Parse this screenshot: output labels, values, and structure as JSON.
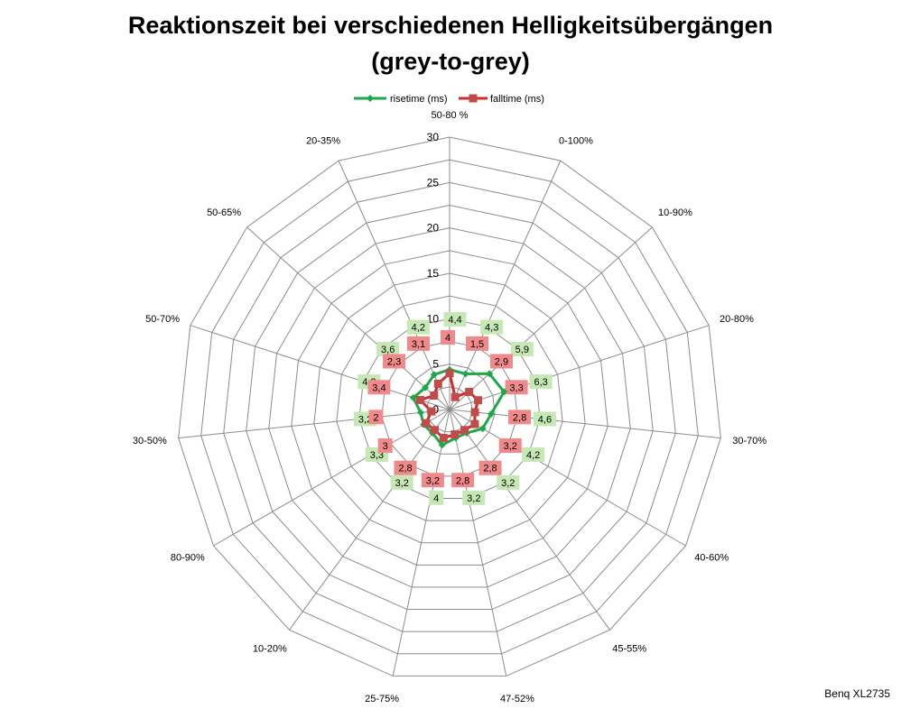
{
  "title_line1": "Reaktionszeit bei verschiedenen Helligkeitsübergängen",
  "title_line2": "(grey-to-grey)",
  "source_label": "Benq XL2735",
  "colors": {
    "rise_line": "#1fa84a",
    "fall_line": "#d42a2a",
    "fall_marker": "#bf4b4b",
    "rise_label_bg": "#c5e8b4",
    "fall_label_bg": "#f08a8a",
    "grid": "#8c8c8c"
  },
  "chart_data": {
    "type": "radar",
    "title": "Reaktionszeit bei verschiedenen Helligkeitsübergängen (grey-to-grey)",
    "categories": [
      "50-80 %",
      "0-100%",
      "10-90%",
      "20-80%",
      "30-70%",
      "40-60%",
      "45-55%",
      "47-52%",
      "25-75%",
      "10-20%",
      "80-90%",
      "30-50%",
      "50-70%",
      "50-65%",
      "20-35%"
    ],
    "ticks": [
      "0",
      "5",
      "10",
      "15",
      "20",
      "25",
      "30"
    ],
    "rmax": 30,
    "grid_step": 2.5,
    "legend_position": "top",
    "series": [
      {
        "name": "risetime (ms)",
        "values": [
          4.4,
          4.3,
          5.9,
          6.3,
          4.6,
          4.2,
          3.2,
          3.2,
          4,
          3.2,
          3.3,
          3.2,
          4.2,
          3.6,
          4.2
        ],
        "labels": [
          "4,4",
          "4,3",
          "5,9",
          "6,3",
          "4,6",
          "4,2",
          "3,2",
          "3,2",
          "4",
          "3,2",
          "3,3",
          "3,2",
          "4,2",
          "3,6",
          "4,2"
        ]
      },
      {
        "name": "falltime (ms)",
        "values": [
          4,
          1.5,
          2.9,
          3.3,
          2.8,
          3.2,
          2.8,
          2.8,
          3.2,
          2.8,
          3,
          2,
          3.4,
          2.3,
          3.1
        ],
        "labels": [
          "4",
          "1,5",
          "2,9",
          "3,3",
          "2,8",
          "3,2",
          "2,8",
          "2,8",
          "3,2",
          "2,8",
          "3",
          "2",
          "3,4",
          "2,3",
          "3,1"
        ]
      }
    ]
  }
}
